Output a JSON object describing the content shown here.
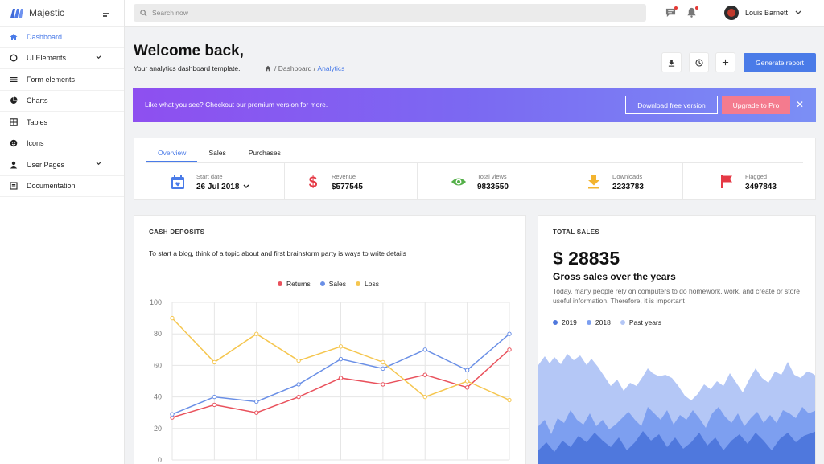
{
  "app": {
    "name": "Majestic"
  },
  "sidebar": {
    "items": [
      {
        "label": "Dashboard",
        "icon": "home-icon",
        "active": true,
        "has_submenu": false
      },
      {
        "label": "UI Elements",
        "icon": "circle-icon",
        "active": false,
        "has_submenu": true
      },
      {
        "label": "Form elements",
        "icon": "list-icon",
        "active": false,
        "has_submenu": false
      },
      {
        "label": "Charts",
        "icon": "pie-chart-icon",
        "active": false,
        "has_submenu": false
      },
      {
        "label": "Tables",
        "icon": "grid-icon",
        "active": false,
        "has_submenu": false
      },
      {
        "label": "Icons",
        "icon": "smiley-icon",
        "active": false,
        "has_submenu": false
      },
      {
        "label": "User Pages",
        "icon": "user-icon",
        "active": false,
        "has_submenu": true
      },
      {
        "label": "Documentation",
        "icon": "document-icon",
        "active": false,
        "has_submenu": false
      }
    ]
  },
  "topbar": {
    "search_placeholder": "Search now",
    "user_name": "Louis Barnett"
  },
  "page": {
    "title": "Welcome back,",
    "subtitle": "Your analytics dashboard template.",
    "breadcrumb": [
      "Dashboard",
      "Analytics"
    ],
    "generate_label": "Generate report"
  },
  "promo": {
    "text": "Like what you see? Checkout our premium version for more.",
    "download_label": "Download free version",
    "upgrade_label": "Upgrade to Pro"
  },
  "stats": {
    "tabs": [
      {
        "label": "Overview",
        "active": true
      },
      {
        "label": "Sales",
        "active": false
      },
      {
        "label": "Purchases",
        "active": false
      }
    ],
    "items": [
      {
        "label": "Start date",
        "value": "26 Jul 2018",
        "icon": "calendar-icon",
        "color": "#4a7be8"
      },
      {
        "label": "Revenue",
        "value": "$577545",
        "icon": "dollar-icon",
        "color": "#e53945"
      },
      {
        "label": "Total views",
        "value": "9833550",
        "icon": "eye-icon",
        "color": "#55b04a"
      },
      {
        "label": "Downloads",
        "value": "2233783",
        "icon": "download-icon",
        "color": "#f3b42f"
      },
      {
        "label": "Flagged",
        "value": "3497843",
        "icon": "flag-icon",
        "color": "#e53945"
      }
    ]
  },
  "cash_deposits": {
    "title": "CASH DEPOSITS",
    "description": "To start a blog, think of a topic about and first brainstorm party is ways to write details"
  },
  "total_sales": {
    "title": "TOTAL SALES",
    "amount": "$ 28835",
    "subtitle": "Gross sales over the years",
    "text": "Today, many people rely on computers to do homework, work, and create or store useful information. Therefore, it is important"
  },
  "chart_data": [
    {
      "type": "line",
      "x": [
        1,
        2,
        3,
        4,
        5,
        6,
        7,
        8,
        9
      ],
      "series": [
        {
          "name": "Returns",
          "color": "#e9515c",
          "values": [
            27,
            35,
            30,
            40,
            52,
            48,
            54,
            46,
            70
          ]
        },
        {
          "name": "Sales",
          "color": "#6a8fe6",
          "values": [
            29,
            40,
            37,
            48,
            64,
            58,
            70,
            57,
            80
          ]
        },
        {
          "name": "Loss",
          "color": "#f5c64f",
          "values": [
            90,
            62,
            80,
            63,
            72,
            62,
            40,
            50,
            38
          ]
        }
      ],
      "yticks": [
        "100",
        "80",
        "60",
        "40",
        "20",
        "0"
      ],
      "ylim": [
        0,
        100
      ],
      "grid": true,
      "legend": "top"
    },
    {
      "type": "area",
      "series": [
        {
          "name": "2019",
          "color": "#4f78dd"
        },
        {
          "name": "2018",
          "color": "#7d9ff0"
        },
        {
          "name": "Past years",
          "color": "#b4c7f6"
        }
      ],
      "legend": "top-left"
    }
  ]
}
